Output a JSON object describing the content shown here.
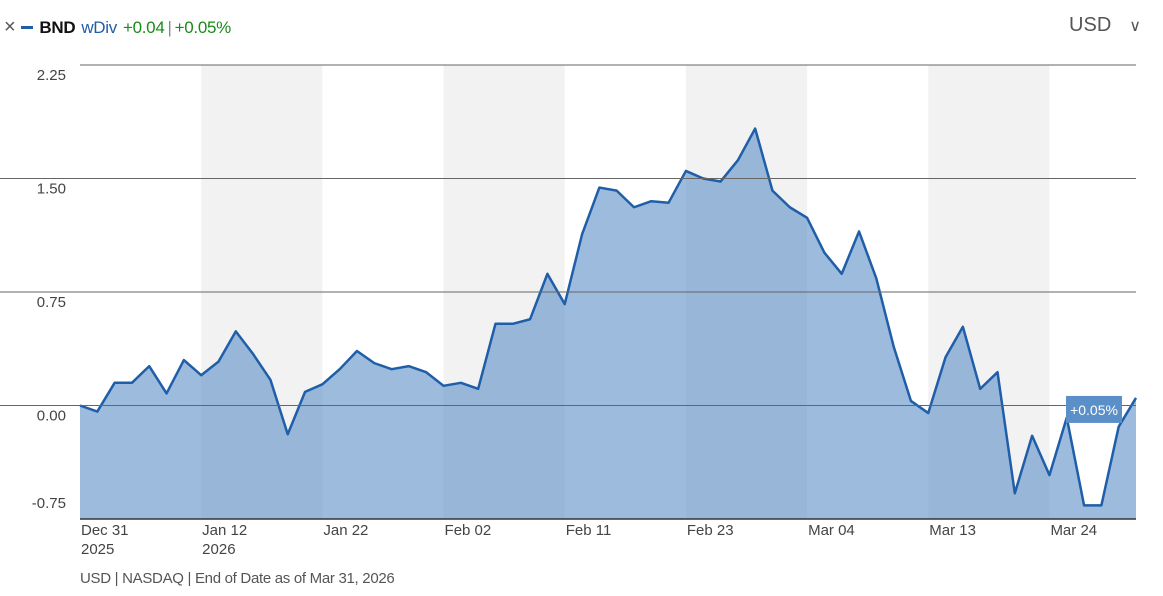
{
  "header": {
    "close": "×",
    "symbol": "BND",
    "mode": "wDiv",
    "change": "+0.04",
    "separator": "|",
    "change_pct": "+0.05%",
    "currency": "USD",
    "dropdown": "∨"
  },
  "footer": "USD | NASDAQ | End of Date as of Mar 31, 2026",
  "chart_data": {
    "type": "area",
    "categories": [
      "Dec 31",
      null,
      null,
      null,
      null,
      null,
      null,
      "Jan 12",
      null,
      null,
      null,
      null,
      null,
      null,
      "Jan 22",
      null,
      null,
      null,
      null,
      null,
      null,
      "Feb 02",
      null,
      null,
      null,
      null,
      null,
      null,
      "Feb 11",
      null,
      null,
      null,
      null,
      null,
      null,
      "Feb 23",
      null,
      null,
      null,
      null,
      null,
      null,
      "Mar 04",
      null,
      null,
      null,
      null,
      null,
      null,
      "Mar 13",
      null,
      null,
      null,
      null,
      null,
      null,
      "Mar 24",
      null,
      null,
      null,
      null,
      null
    ],
    "year_labels": [
      "2025",
      null,
      null,
      null,
      null,
      null,
      null,
      "2026",
      null,
      null,
      null,
      null,
      null,
      null,
      null,
      null,
      null,
      null,
      null,
      null,
      null,
      null,
      null,
      null,
      null,
      null,
      null,
      null,
      null,
      null,
      null,
      null,
      null,
      null,
      null,
      null,
      null,
      null,
      null,
      null,
      null,
      null,
      null,
      null,
      null,
      null,
      null,
      null,
      null,
      null,
      null,
      null,
      null,
      null,
      null,
      null,
      null,
      null,
      null,
      null,
      null,
      null
    ],
    "series": [
      {
        "name": "BND",
        "color": "#1f5ea8",
        "values": [
          0.0,
          -0.04,
          0.15,
          0.15,
          0.26,
          0.08,
          0.3,
          0.2,
          0.29,
          0.49,
          0.34,
          0.17,
          -0.19,
          0.09,
          0.14,
          0.24,
          0.36,
          0.28,
          0.24,
          0.26,
          0.22,
          0.13,
          0.15,
          0.11,
          0.54,
          0.54,
          0.57,
          0.87,
          0.67,
          1.13,
          1.44,
          1.42,
          1.31,
          1.35,
          1.34,
          1.55,
          1.5,
          1.48,
          1.62,
          1.83,
          1.42,
          1.31,
          1.24,
          1.01,
          0.87,
          1.15,
          0.84,
          0.39,
          0.03,
          -0.05,
          0.32,
          0.52,
          0.11,
          0.22,
          -0.58,
          -0.2,
          -0.46,
          -0.08,
          -0.66,
          -0.66,
          -0.14,
          0.05
        ],
        "value_labels": [
          null,
          null,
          null,
          null,
          null,
          null,
          null,
          null,
          null,
          null,
          null,
          null,
          null,
          null,
          null,
          null,
          null,
          null,
          null,
          null,
          null,
          null,
          null,
          null,
          null,
          null,
          null,
          null,
          null,
          null,
          null,
          null,
          null,
          null,
          null,
          null,
          null,
          null,
          null,
          null,
          null,
          null,
          null,
          null,
          null,
          null,
          null,
          null,
          null,
          null,
          null,
          null,
          null,
          null,
          null,
          null,
          null,
          null,
          null,
          null,
          null,
          "+0.05%"
        ]
      }
    ],
    "ylim": [
      -0.75,
      2.25
    ],
    "yticks": [
      -0.75,
      {
        "value": 0,
        "label": "0.00"
      },
      0.75,
      {
        "value": 1.5,
        "label": "1.50"
      },
      2.25
    ],
    "grid": true
  }
}
